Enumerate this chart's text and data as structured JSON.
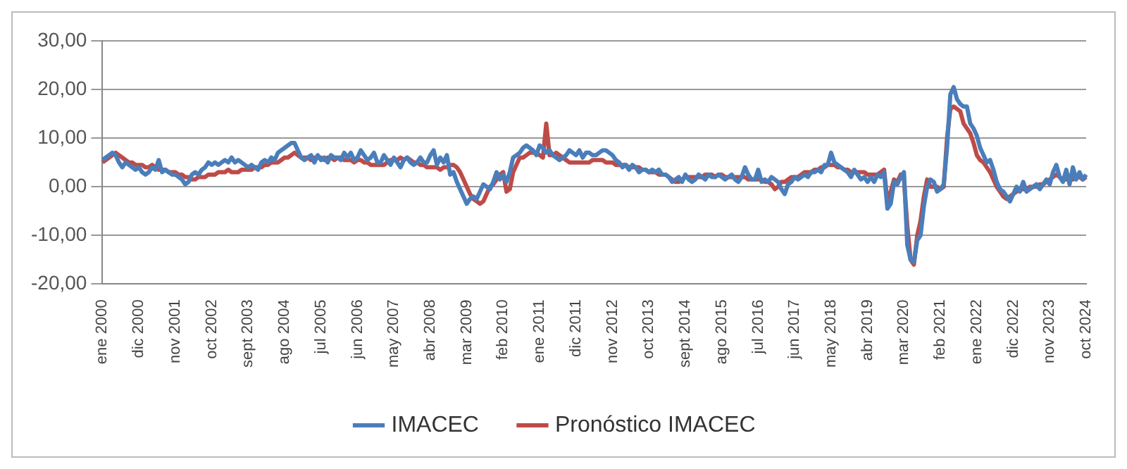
{
  "chart_data": {
    "type": "line",
    "categories": [
      "ene 2000",
      null,
      null,
      null,
      null,
      null,
      null,
      null,
      null,
      null,
      null,
      "dic 2000",
      null,
      null,
      null,
      null,
      null,
      null,
      null,
      null,
      null,
      null,
      "nov 2001",
      null,
      null,
      null,
      null,
      null,
      null,
      null,
      null,
      null,
      null,
      "oct 2002",
      null,
      null,
      null,
      null,
      null,
      null,
      null,
      null,
      null,
      null,
      "sept 2003",
      null,
      null,
      null,
      null,
      null,
      null,
      null,
      null,
      null,
      null,
      "ago 2004",
      null,
      null,
      null,
      null,
      null,
      null,
      null,
      null,
      null,
      null,
      "jul 2005",
      null,
      null,
      null,
      null,
      null,
      null,
      null,
      null,
      null,
      null,
      "jun 2006",
      null,
      null,
      null,
      null,
      null,
      null,
      null,
      null,
      null,
      null,
      "may 2007",
      null,
      null,
      null,
      null,
      null,
      null,
      null,
      null,
      null,
      null,
      "abr 2008",
      null,
      null,
      null,
      null,
      null,
      null,
      null,
      null,
      null,
      null,
      "mar 2009",
      null,
      null,
      null,
      null,
      null,
      null,
      null,
      null,
      null,
      null,
      "feb 2010",
      null,
      null,
      null,
      null,
      null,
      null,
      null,
      null,
      null,
      null,
      "ene 2011",
      null,
      null,
      null,
      null,
      null,
      null,
      null,
      null,
      null,
      null,
      "dic 2011",
      null,
      null,
      null,
      null,
      null,
      null,
      null,
      null,
      null,
      null,
      "nov 2012",
      null,
      null,
      null,
      null,
      null,
      null,
      null,
      null,
      null,
      null,
      "oct 2013",
      null,
      null,
      null,
      null,
      null,
      null,
      null,
      null,
      null,
      null,
      "sept 2014",
      null,
      null,
      null,
      null,
      null,
      null,
      null,
      null,
      null,
      null,
      "ago 2015",
      null,
      null,
      null,
      null,
      null,
      null,
      null,
      null,
      null,
      null,
      "jul 2016",
      null,
      null,
      null,
      null,
      null,
      null,
      null,
      null,
      null,
      null,
      "jun 2017",
      null,
      null,
      null,
      null,
      null,
      null,
      null,
      null,
      null,
      null,
      "may 2018",
      null,
      null,
      null,
      null,
      null,
      null,
      null,
      null,
      null,
      null,
      "abr 2019",
      null,
      null,
      null,
      null,
      null,
      null,
      null,
      null,
      null,
      null,
      "mar 2020",
      null,
      null,
      null,
      null,
      null,
      null,
      null,
      null,
      null,
      null,
      "feb 2021",
      null,
      null,
      null,
      null,
      null,
      null,
      null,
      null,
      null,
      null,
      "ene 2022",
      null,
      null,
      null,
      null,
      null,
      null,
      null,
      null,
      null,
      null,
      "dic 2022",
      null,
      null,
      null,
      null,
      null,
      null,
      null,
      null,
      null,
      null,
      "nov 2023",
      null,
      null,
      null,
      null,
      null,
      null,
      null,
      null,
      null,
      null,
      "oct 2024"
    ],
    "series": [
      {
        "name": "IMACEC",
        "color": "#4a7ebb",
        "values": [
          5.5,
          6,
          6.5,
          7,
          6.5,
          5,
          4,
          5,
          4.5,
          4,
          3.5,
          4,
          3,
          2.5,
          3,
          4,
          3.5,
          5.5,
          3,
          3.5,
          3,
          2.5,
          2.5,
          2,
          1.5,
          0.5,
          1,
          2.5,
          3,
          2.5,
          3.5,
          4,
          5,
          4.5,
          5,
          4.5,
          5,
          5.5,
          5,
          6,
          5,
          5.5,
          5,
          4.5,
          4,
          4.5,
          4,
          3.5,
          5,
          5.5,
          5,
          6,
          5.5,
          7,
          7.5,
          8,
          8.5,
          9,
          9,
          7.5,
          6,
          5.5,
          6,
          6.5,
          5,
          6.5,
          5.5,
          6,
          5,
          6.5,
          6,
          6,
          5.5,
          7,
          6,
          7,
          5.5,
          6,
          7.5,
          6.5,
          5.5,
          6,
          7,
          5,
          5,
          6.5,
          5.5,
          4.5,
          6,
          5,
          4,
          5.5,
          6,
          5,
          4.5,
          5,
          6,
          5,
          5,
          6.5,
          7.5,
          4.5,
          6,
          5,
          6.5,
          2.5,
          3,
          1,
          -0.5,
          -2,
          -3.5,
          -2.5,
          -2,
          -2.5,
          -1,
          0.5,
          0,
          -0.5,
          1,
          3,
          1.5,
          2.5,
          1,
          3,
          6,
          6.5,
          7,
          8,
          8.5,
          8,
          7.5,
          6.5,
          8.5,
          8,
          7,
          7.5,
          6.5,
          6,
          5.5,
          6,
          6.5,
          7.5,
          7,
          6.5,
          7.5,
          6,
          7,
          7,
          6.5,
          6.5,
          7,
          7.5,
          7.5,
          7,
          6.5,
          5.5,
          5,
          4,
          4.5,
          3.5,
          4.5,
          4,
          3,
          3.5,
          3.5,
          3,
          3.5,
          3,
          3.5,
          2.5,
          2.5,
          2,
          1,
          1.5,
          2,
          1,
          2.5,
          1.5,
          1,
          1.5,
          2.5,
          2,
          1.5,
          2.5,
          2,
          2,
          2.5,
          2,
          1.5,
          2,
          2.5,
          1.5,
          1,
          2,
          4,
          2.5,
          1.5,
          1.5,
          3.5,
          1,
          1.5,
          1,
          2,
          1.5,
          1,
          -0.5,
          -1.5,
          0.5,
          1,
          2,
          1.5,
          2,
          2.5,
          2,
          3,
          3,
          3.5,
          3,
          4.5,
          4.5,
          7,
          5,
          4.5,
          4,
          3.5,
          3,
          2,
          3.5,
          2.5,
          1.5,
          2,
          1,
          2,
          1,
          2.5,
          2,
          3,
          -4.5,
          -3.5,
          1,
          0.5,
          2,
          3,
          -12,
          -15,
          -15.5,
          -11,
          -10,
          -4,
          0,
          1.5,
          1,
          -1,
          -0.5,
          0.5,
          8,
          19,
          20.5,
          18,
          17,
          16.5,
          16.5,
          13,
          12,
          10.5,
          8,
          6.5,
          5,
          5.5,
          3.5,
          1,
          -0.5,
          -1,
          -2,
          -3,
          -1.5,
          0,
          -1,
          1,
          -1,
          -0.5,
          0,
          0.5,
          -0.5,
          0.5,
          1.5,
          0.5,
          3,
          4.5,
          2,
          1,
          3.5,
          0.5,
          4,
          1.5,
          3,
          1.5,
          2.5
        ]
      },
      {
        "name": "Pronóstico IMACEC",
        "color": "#be4b48",
        "values": [
          5,
          5.5,
          6,
          6.5,
          7,
          6.5,
          6,
          5.5,
          5,
          5,
          4.5,
          4.5,
          4.5,
          4,
          4,
          4.5,
          4,
          3.5,
          3.5,
          3.5,
          3,
          3,
          3,
          2.5,
          2.5,
          2,
          2,
          1.5,
          1.5,
          2,
          2,
          2,
          2.5,
          2.5,
          2.5,
          3,
          3,
          3,
          3.5,
          3,
          3,
          3,
          3.5,
          3.5,
          3.5,
          3.5,
          4,
          4,
          4,
          4.5,
          4.5,
          5,
          5,
          5,
          5.5,
          6,
          6,
          6.5,
          7,
          6.5,
          6,
          6,
          6,
          5.5,
          6,
          6,
          6,
          5.5,
          6,
          6,
          5.5,
          6,
          6,
          5.5,
          5.5,
          5.5,
          5,
          5.5,
          5.5,
          5,
          5,
          4.5,
          4.5,
          4.5,
          4.5,
          4.5,
          5,
          5.5,
          5.5,
          5.5,
          6,
          5.5,
          6,
          5.5,
          5,
          5,
          4.5,
          4.5,
          4,
          4,
          4,
          4,
          3.5,
          4,
          4,
          4.5,
          4.5,
          4,
          3,
          1.5,
          0,
          -1.5,
          -2.5,
          -3,
          -3.5,
          -3,
          -1.5,
          0,
          0.5,
          1.5,
          2.5,
          3,
          -1,
          -0.5,
          3,
          4.5,
          6,
          6,
          6.5,
          7,
          7,
          7,
          6.5,
          6,
          13,
          6.5,
          6.5,
          7,
          6.5,
          6,
          5.5,
          5,
          5,
          5,
          5,
          5,
          5,
          5,
          5.5,
          5.5,
          5.5,
          5.5,
          5,
          5,
          5,
          4.5,
          4.5,
          4.5,
          4.5,
          4,
          4,
          4,
          4,
          3.5,
          3.5,
          3,
          3,
          3,
          2.5,
          2.5,
          2.5,
          2,
          1.5,
          1,
          1,
          1.5,
          2,
          2,
          2,
          2,
          2,
          2,
          2.5,
          2.5,
          2.5,
          2,
          2.5,
          2.5,
          2,
          2,
          2,
          2,
          2,
          2,
          2,
          1.5,
          1.5,
          1.5,
          1.5,
          1.5,
          1,
          1,
          0.5,
          -0.5,
          0,
          1,
          1,
          1.5,
          2,
          2,
          2,
          2.5,
          3,
          3,
          3,
          3.5,
          3.5,
          4,
          4,
          4.5,
          4.5,
          4.5,
          4,
          4,
          3.5,
          3.5,
          3,
          3,
          3,
          3,
          3,
          2.5,
          2.5,
          2.5,
          2.5,
          3,
          3.5,
          -3,
          -1,
          1.5,
          1,
          2.5,
          1.5,
          -8,
          -15,
          -16,
          -10,
          -7,
          -2,
          1.5,
          0,
          0,
          0,
          -0.5,
          0,
          10,
          16,
          16.5,
          16,
          15.5,
          13,
          12,
          11,
          9,
          6.5,
          5.5,
          5,
          4,
          3,
          1.5,
          0,
          -1,
          -2,
          -2.5,
          -2,
          -1.5,
          -1,
          -0.5,
          -0.5,
          -0.5,
          0,
          0,
          0,
          0.5,
          0.5,
          1,
          1.5,
          2,
          2.5,
          2,
          1.5,
          1.5,
          2,
          1.5,
          2,
          2,
          1.5,
          2
        ]
      }
    ],
    "ylim": [
      -20,
      30
    ],
    "yticks": [
      {
        "value": -20,
        "label": "-20,00"
      },
      {
        "value": -10,
        "label": "-10,00"
      },
      {
        "value": 0,
        "label": "0,00"
      },
      {
        "value": 10,
        "label": "10,00"
      },
      {
        "value": 20,
        "label": "20,00"
      },
      {
        "value": 30,
        "label": "30,00"
      }
    ],
    "grid": "y",
    "legend": "bottom",
    "marker": "none",
    "line_style": "solid"
  }
}
